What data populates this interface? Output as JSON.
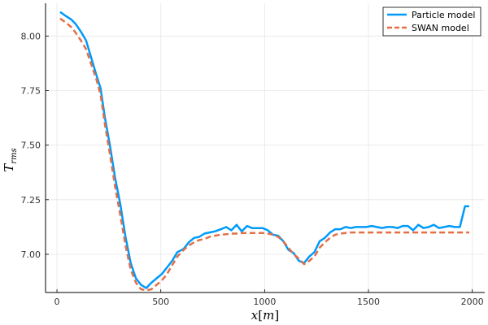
{
  "chart_data": {
    "type": "line",
    "title": "",
    "xlabel": "x",
    "xlabel_unit": "m",
    "ylabel": "T",
    "ylabel_sub": "rms",
    "xlim": [
      -55,
      2060
    ],
    "ylim": [
      6.825,
      8.15
    ],
    "xticks": [
      0,
      500,
      1000,
      1500,
      2000
    ],
    "yticks": [
      7.0,
      7.25,
      7.5,
      7.75,
      8.0
    ],
    "grid": true,
    "legend_position": "top-right",
    "series": [
      {
        "name": "Particle model",
        "color": "#009AFA",
        "style": "solid",
        "x": [
          15,
          45,
          70,
          90,
          115,
          140,
          165,
          190,
          210,
          230,
          255,
          280,
          305,
          330,
          355,
          380,
          405,
          430,
          455,
          480,
          505,
          530,
          555,
          580,
          610,
          635,
          660,
          685,
          710,
          735,
          760,
          790,
          815,
          840,
          865,
          890,
          915,
          940,
          965,
          990,
          1015,
          1040,
          1065,
          1090,
          1115,
          1140,
          1165,
          1190,
          1215,
          1240,
          1265,
          1290,
          1315,
          1340,
          1365,
          1390,
          1415,
          1440,
          1465,
          1490,
          1515,
          1540,
          1565,
          1590,
          1615,
          1640,
          1665,
          1690,
          1715,
          1740,
          1765,
          1790,
          1815,
          1840,
          1865,
          1890,
          1915,
          1940,
          1965,
          1985
        ],
        "y": [
          8.11,
          8.09,
          8.075,
          8.055,
          8.02,
          7.98,
          7.9,
          7.82,
          7.76,
          7.63,
          7.5,
          7.35,
          7.23,
          7.08,
          6.96,
          6.89,
          6.86,
          6.845,
          6.87,
          6.89,
          6.91,
          6.94,
          6.97,
          7.01,
          7.025,
          7.055,
          7.075,
          7.08,
          7.095,
          7.1,
          7.105,
          7.115,
          7.125,
          7.11,
          7.135,
          7.105,
          7.13,
          7.12,
          7.12,
          7.12,
          7.11,
          7.09,
          7.085,
          7.06,
          7.02,
          7.005,
          6.97,
          6.96,
          6.99,
          7.01,
          7.06,
          7.075,
          7.1,
          7.115,
          7.115,
          7.125,
          7.12,
          7.125,
          7.125,
          7.125,
          7.13,
          7.125,
          7.12,
          7.125,
          7.125,
          7.12,
          7.13,
          7.13,
          7.11,
          7.135,
          7.12,
          7.125,
          7.135,
          7.12,
          7.125,
          7.13,
          7.125,
          7.125,
          7.22,
          7.22
        ]
      },
      {
        "name": "SWAN model",
        "color": "#E26F46",
        "style": "dashed",
        "x": [
          15,
          45,
          70,
          90,
          115,
          140,
          165,
          190,
          210,
          230,
          255,
          280,
          305,
          330,
          355,
          380,
          405,
          430,
          455,
          480,
          505,
          530,
          555,
          580,
          610,
          635,
          660,
          685,
          710,
          735,
          760,
          790,
          815,
          840,
          865,
          890,
          915,
          940,
          965,
          990,
          1015,
          1040,
          1065,
          1090,
          1115,
          1140,
          1165,
          1190,
          1215,
          1240,
          1265,
          1290,
          1315,
          1340,
          1365,
          1390,
          1415,
          1440,
          1465,
          1490,
          1515,
          1540,
          1565,
          1590,
          1615,
          1640,
          1665,
          1690,
          1715,
          1740,
          1765,
          1790,
          1815,
          1840,
          1865,
          1890,
          1915,
          1940,
          1965,
          1985
        ],
        "y": [
          8.08,
          8.06,
          8.04,
          8.015,
          7.98,
          7.94,
          7.87,
          7.8,
          7.73,
          7.6,
          7.46,
          7.31,
          7.18,
          7.04,
          6.93,
          6.87,
          6.84,
          6.835,
          6.84,
          6.86,
          6.88,
          6.91,
          6.95,
          6.99,
          7.02,
          7.04,
          7.055,
          7.065,
          7.07,
          7.08,
          7.085,
          7.09,
          7.092,
          7.095,
          7.095,
          7.097,
          7.098,
          7.098,
          7.098,
          7.098,
          7.095,
          7.09,
          7.08,
          7.06,
          7.03,
          7.0,
          6.98,
          6.955,
          6.97,
          6.99,
          7.03,
          7.055,
          7.075,
          7.09,
          7.095,
          7.098,
          7.1,
          7.1,
          7.1,
          7.1,
          7.1,
          7.1,
          7.1,
          7.1,
          7.1,
          7.1,
          7.1,
          7.1,
          7.1,
          7.1,
          7.1,
          7.1,
          7.1,
          7.1,
          7.1,
          7.1,
          7.1,
          7.1,
          7.1,
          7.1
        ]
      }
    ]
  }
}
